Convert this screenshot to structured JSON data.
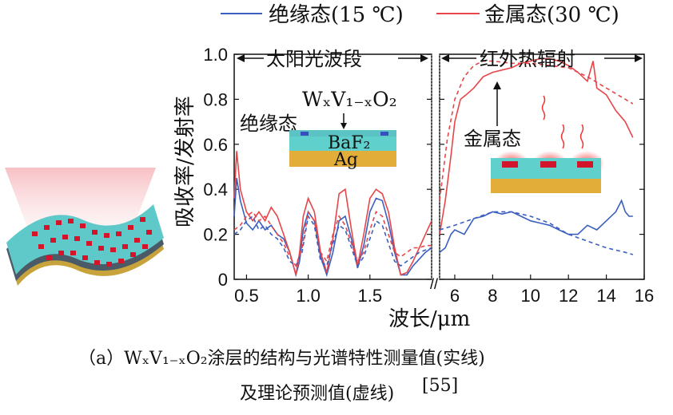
{
  "chart_data": {
    "type": "line",
    "ylabel": "吸收率/发射率",
    "xlabel": "波长/μm",
    "ylim": [
      0,
      1.0
    ],
    "yticks": [
      "0",
      "0.2",
      "0.4",
      "0.6",
      "0.8",
      "1.0"
    ],
    "left_panel": {
      "region_label": "太阳光波段",
      "xlim": [
        0.4,
        2.0
      ],
      "xticks": [
        0.5,
        1.0,
        1.5
      ],
      "xtick_labels": [
        "0.5",
        "1.0",
        "1.5"
      ]
    },
    "right_panel": {
      "region_label": "红外热辐射",
      "xlim": [
        5.2,
        16
      ],
      "xticks": [
        6,
        8,
        10,
        12,
        14,
        16
      ],
      "xtick_labels": [
        "6",
        "8",
        "10",
        "12",
        "14",
        "16"
      ]
    },
    "legend": {
      "insulating": "绝缘态(15 ℃)",
      "metallic": "金属态(30 ℃)"
    },
    "series": [
      {
        "name": "绝缘态(15 ℃)",
        "color": "#3a5fbf",
        "style": "solid",
        "x_left": [
          0.4,
          0.42,
          0.45,
          0.5,
          0.55,
          0.6,
          0.65,
          0.7,
          0.75,
          0.8,
          0.85,
          0.9,
          0.93,
          0.96,
          1.0,
          1.05,
          1.1,
          1.15,
          1.2,
          1.25,
          1.3,
          1.35,
          1.4,
          1.45,
          1.5,
          1.55,
          1.6,
          1.65,
          1.7,
          1.75,
          1.8,
          1.85,
          1.9,
          1.95,
          2.0
        ],
        "y_left": [
          0.28,
          0.45,
          0.35,
          0.25,
          0.22,
          0.26,
          0.22,
          0.24,
          0.2,
          0.18,
          0.12,
          0.02,
          0.08,
          0.22,
          0.3,
          0.26,
          0.1,
          0.02,
          0.12,
          0.26,
          0.28,
          0.18,
          0.05,
          0.15,
          0.3,
          0.36,
          0.35,
          0.25,
          0.12,
          0.02,
          0.02,
          0.06,
          0.09,
          0.12,
          0.14
        ],
        "x_right": [
          5.2,
          5.5,
          5.8,
          6.0,
          6.5,
          7.0,
          7.5,
          8.0,
          8.5,
          9.0,
          9.5,
          10.0,
          10.5,
          11.0,
          11.5,
          12.0,
          12.5,
          13.0,
          13.5,
          14.0,
          14.5,
          14.8,
          15.0,
          15.2,
          15.4
        ],
        "y_right": [
          0.12,
          0.14,
          0.2,
          0.22,
          0.2,
          0.27,
          0.28,
          0.3,
          0.29,
          0.3,
          0.28,
          0.26,
          0.25,
          0.24,
          0.22,
          0.2,
          0.2,
          0.24,
          0.22,
          0.26,
          0.3,
          0.35,
          0.3,
          0.28,
          0.28
        ]
      },
      {
        "name": "金属态(30 ℃)",
        "color": "#e8454a",
        "style": "solid",
        "x_left": [
          0.4,
          0.42,
          0.45,
          0.5,
          0.55,
          0.6,
          0.65,
          0.7,
          0.75,
          0.8,
          0.85,
          0.9,
          0.93,
          0.96,
          1.0,
          1.05,
          1.1,
          1.15,
          1.2,
          1.25,
          1.3,
          1.35,
          1.4,
          1.45,
          1.5,
          1.55,
          1.6,
          1.65,
          1.7,
          1.75,
          1.8,
          1.85,
          1.9,
          1.95,
          2.0
        ],
        "y_left": [
          0.36,
          0.57,
          0.4,
          0.3,
          0.26,
          0.3,
          0.26,
          0.32,
          0.28,
          0.2,
          0.12,
          0.02,
          0.12,
          0.28,
          0.36,
          0.3,
          0.12,
          0.03,
          0.18,
          0.38,
          0.4,
          0.22,
          0.06,
          0.2,
          0.36,
          0.4,
          0.38,
          0.3,
          0.14,
          0.02,
          0.03,
          0.08,
          0.14,
          0.2,
          0.26
        ],
        "x_right": [
          5.2,
          5.5,
          5.8,
          6.0,
          6.3,
          6.6,
          7.0,
          7.5,
          8.0,
          8.5,
          9.0,
          9.5,
          10.0,
          10.5,
          11.0,
          11.5,
          12.0,
          12.5,
          13.0,
          13.3,
          13.5,
          14.0,
          14.5,
          15.0,
          15.4
        ],
        "y_right": [
          0.2,
          0.35,
          0.55,
          0.7,
          0.8,
          0.82,
          0.85,
          0.9,
          0.92,
          0.93,
          0.94,
          0.96,
          0.97,
          0.98,
          0.98,
          0.97,
          0.95,
          0.92,
          0.88,
          0.97,
          0.85,
          0.82,
          0.75,
          0.7,
          0.63
        ]
      },
      {
        "name": "绝缘态(15 ℃) 理论",
        "color": "#3a5fbf",
        "style": "dashed",
        "x_left": [
          0.4,
          0.45,
          0.5,
          0.55,
          0.6,
          0.65,
          0.7,
          0.75,
          0.8,
          0.85,
          0.9,
          0.95,
          1.0,
          1.05,
          1.1,
          1.15,
          1.2,
          1.25,
          1.3,
          1.35,
          1.4,
          1.45,
          1.5,
          1.55,
          1.6,
          1.65,
          1.7,
          1.75,
          1.8,
          1.85,
          1.9,
          1.95,
          2.0
        ],
        "y_left": [
          0.2,
          0.22,
          0.26,
          0.28,
          0.22,
          0.24,
          0.2,
          0.18,
          0.14,
          0.08,
          0.06,
          0.12,
          0.28,
          0.24,
          0.08,
          0.06,
          0.16,
          0.24,
          0.22,
          0.14,
          0.06,
          0.1,
          0.18,
          0.26,
          0.24,
          0.16,
          0.08,
          0.06,
          0.08,
          0.1,
          0.12,
          0.13,
          0.14
        ],
        "x_right": [
          5.2,
          6.0,
          7.0,
          8.0,
          9.0,
          10.0,
          11.0,
          12.0,
          13.0,
          14.0,
          15.0,
          15.4
        ],
        "y_right": [
          0.22,
          0.24,
          0.27,
          0.3,
          0.3,
          0.28,
          0.25,
          0.2,
          0.17,
          0.14,
          0.12,
          0.11
        ]
      },
      {
        "name": "金属态(30 ℃) 理论",
        "color": "#e8454a",
        "style": "dashed",
        "x_left": [
          0.4,
          0.45,
          0.5,
          0.55,
          0.6,
          0.65,
          0.7,
          0.75,
          0.8,
          0.85,
          0.9,
          0.95,
          1.0,
          1.05,
          1.1,
          1.15,
          1.2,
          1.25,
          1.3,
          1.35,
          1.4,
          1.45,
          1.5,
          1.55,
          1.6,
          1.65,
          1.7,
          1.75,
          1.8,
          1.85,
          1.9,
          1.95,
          2.0
        ],
        "y_left": [
          0.22,
          0.24,
          0.28,
          0.3,
          0.26,
          0.28,
          0.24,
          0.2,
          0.16,
          0.1,
          0.06,
          0.14,
          0.3,
          0.26,
          0.12,
          0.08,
          0.2,
          0.28,
          0.24,
          0.16,
          0.08,
          0.12,
          0.22,
          0.3,
          0.28,
          0.2,
          0.12,
          0.1,
          0.12,
          0.14,
          0.14,
          0.15,
          0.15
        ],
        "x_right": [
          5.2,
          5.6,
          6.0,
          6.5,
          7.0,
          7.5,
          8.0,
          9.0,
          10.0,
          11.0,
          12.0,
          13.0,
          14.0,
          15.0,
          15.4
        ],
        "y_right": [
          0.35,
          0.62,
          0.8,
          0.9,
          0.95,
          0.97,
          0.97,
          0.96,
          0.96,
          0.95,
          0.94,
          0.9,
          0.85,
          0.8,
          0.78
        ]
      }
    ],
    "annotations": {
      "inset_formula": "WₓV₁₋ₓO₂",
      "inset_layer_top": "BaF₂",
      "inset_layer_bottom": "Ag",
      "label_insulating": "绝缘态",
      "label_metallic": "金属态"
    }
  },
  "caption": {
    "line1": "（a）WₓV₁₋ₓO₂涂层的结构与光谱特性测量值(实线)",
    "line2": "及理论预测值(虚线)",
    "ref": "[55]"
  }
}
